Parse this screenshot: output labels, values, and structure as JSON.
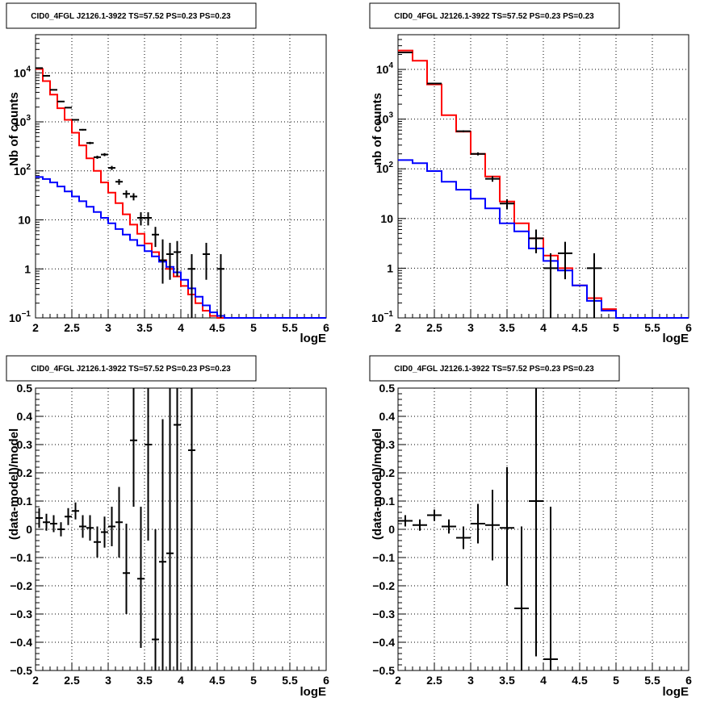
{
  "colors": {
    "data": "#000000",
    "total_model": "#ff0000",
    "background_model": "#0000ff",
    "grid": "#000000",
    "frame": "#000000"
  },
  "chart_data": [
    {
      "type": "step",
      "title": "CID0_4FGL J2126.1-3922 TS=57.52 PS=0.23 PS=0.23",
      "xlabel": "logE",
      "ylabel": "Nb of counts",
      "xlim": [
        2,
        6
      ],
      "ylim": [
        0.1,
        60000
      ],
      "log_y": true,
      "grid": true,
      "x_ticks": [
        "2",
        "2.5",
        "3",
        "3.5",
        "4",
        "4.5",
        "5",
        "5.5",
        "6"
      ],
      "y_ticks": [
        {
          "value": 0.1,
          "label": "10",
          "exp": "−1"
        },
        {
          "value": 1,
          "label": "1"
        },
        {
          "value": 10,
          "label": "10"
        },
        {
          "value": 100,
          "label": "10",
          "exp": "2"
        },
        {
          "value": 1000,
          "label": "10",
          "exp": "3"
        },
        {
          "value": 10000,
          "label": "10",
          "exp": "4"
        }
      ],
      "bin_edges": [
        2.0,
        2.1,
        2.2,
        2.3,
        2.4,
        2.5,
        2.6,
        2.7,
        2.8,
        2.9,
        3.0,
        3.1,
        3.2,
        3.3,
        3.4,
        3.5,
        3.6,
        3.7,
        3.8,
        3.9,
        4.0,
        4.1,
        4.2,
        4.3,
        4.4,
        4.5,
        4.6,
        4.7,
        4.8,
        4.9,
        5.0,
        5.1,
        5.2,
        5.3,
        5.4,
        5.5,
        5.6,
        5.7,
        5.8,
        5.9,
        6.0
      ],
      "series": [
        {
          "name": "total_model",
          "color": "#ff0000",
          "values": [
            12000,
            6800,
            3600,
            1900,
            1100,
            600,
            330,
            180,
            100,
            58,
            36,
            22,
            13,
            8,
            5.2,
            3.3,
            2.2,
            1.5,
            1.0,
            0.7,
            0.45,
            0.3,
            0.2,
            0.14,
            0.11,
            0.1,
            0.1,
            0.1,
            0.1,
            0.1,
            0.1,
            0.1,
            0.1,
            0.1,
            0.1,
            0.1,
            0.1,
            0.1,
            0.1,
            0.1
          ]
        },
        {
          "name": "background_model",
          "color": "#0000ff",
          "values": [
            75,
            68,
            58,
            48,
            38,
            30,
            24,
            18.5,
            14.5,
            11,
            8.5,
            6.5,
            5,
            3.9,
            3.0,
            2.3,
            1.8,
            1.4,
            1.1,
            0.85,
            0.6,
            0.4,
            0.27,
            0.18,
            0.13,
            0.11,
            0.1,
            0.1,
            0.1,
            0.1,
            0.1,
            0.1,
            0.1,
            0.1,
            0.1,
            0.1,
            0.1,
            0.1,
            0.1,
            0.1
          ]
        }
      ],
      "data_points": [
        {
          "x": 2.05,
          "y": 12500,
          "ylo": 12390,
          "yhi": 12610
        },
        {
          "x": 2.15,
          "y": 8700,
          "ylo": 8610,
          "yhi": 8790
        },
        {
          "x": 2.25,
          "y": 4500,
          "ylo": 4430,
          "yhi": 4570
        },
        {
          "x": 2.35,
          "y": 2600,
          "ylo": 2550,
          "yhi": 2650
        },
        {
          "x": 2.45,
          "y": 1950,
          "ylo": 1900,
          "yhi": 2000
        },
        {
          "x": 2.55,
          "y": 1100,
          "ylo": 1070,
          "yhi": 1130
        },
        {
          "x": 2.65,
          "y": 690,
          "ylo": 665,
          "yhi": 715
        },
        {
          "x": 2.75,
          "y": 370,
          "ylo": 350,
          "yhi": 390
        },
        {
          "x": 2.85,
          "y": 190,
          "ylo": 176,
          "yhi": 204
        },
        {
          "x": 2.95,
          "y": 215,
          "ylo": 200,
          "yhi": 230
        },
        {
          "x": 3.05,
          "y": 115,
          "ylo": 104,
          "yhi": 126
        },
        {
          "x": 3.15,
          "y": 60,
          "ylo": 52,
          "yhi": 68
        },
        {
          "x": 3.25,
          "y": 34,
          "ylo": 28,
          "yhi": 40
        },
        {
          "x": 3.35,
          "y": 30,
          "ylo": 25,
          "yhi": 35
        },
        {
          "x": 3.45,
          "y": 11,
          "ylo": 7.7,
          "yhi": 14.3
        },
        {
          "x": 3.55,
          "y": 11,
          "ylo": 7.7,
          "yhi": 14.3
        },
        {
          "x": 3.65,
          "y": 5,
          "ylo": 2.8,
          "yhi": 7.2
        },
        {
          "x": 3.75,
          "y": 1.5,
          "ylo": 0.5,
          "yhi": 4
        },
        {
          "x": 3.85,
          "y": 2,
          "ylo": 0.6,
          "yhi": 3.4
        },
        {
          "x": 3.95,
          "y": 2.2,
          "ylo": 0.7,
          "yhi": 3.7
        },
        {
          "x": 4.15,
          "y": 1,
          "ylo": 0.1,
          "yhi": 2
        },
        {
          "x": 4.35,
          "y": 2,
          "ylo": 0.6,
          "yhi": 3.4
        },
        {
          "x": 4.55,
          "y": 1,
          "ylo": 0.1,
          "yhi": 2
        }
      ]
    },
    {
      "type": "step",
      "title": "CID0_4FGL J2126.1-3922 TS=57.52 PS=0.23 PS=0.23",
      "xlabel": "logE",
      "ylabel": "nb of counts",
      "xlim": [
        2,
        6
      ],
      "ylim": [
        0.1,
        50000
      ],
      "log_y": true,
      "grid": true,
      "x_ticks": [
        "2",
        "2.5",
        "3",
        "3.5",
        "4",
        "4.5",
        "5",
        "5.5",
        "6"
      ],
      "y_ticks": [
        {
          "value": 0.1,
          "label": "10",
          "exp": "−1"
        },
        {
          "value": 1,
          "label": "1"
        },
        {
          "value": 10,
          "label": "10"
        },
        {
          "value": 100,
          "label": "10",
          "exp": "2"
        },
        {
          "value": 1000,
          "label": "10",
          "exp": "3"
        },
        {
          "value": 10000,
          "label": "10",
          "exp": "4"
        }
      ],
      "bin_edges": [
        2.0,
        2.2,
        2.4,
        2.6,
        2.8,
        3.0,
        3.2,
        3.4,
        3.6,
        3.8,
        4.0,
        4.2,
        4.4,
        4.6,
        4.8,
        5.0,
        5.2,
        5.4,
        5.6,
        5.8,
        6.0
      ],
      "series": [
        {
          "name": "total_model",
          "color": "#ff0000",
          "values": [
            24000,
            15000,
            5000,
            1200,
            560,
            200,
            70,
            22,
            8,
            4,
            1.8,
            1.0,
            0.45,
            0.25,
            0.15,
            0.1,
            0.1,
            0.1,
            0.1,
            0.1
          ]
        },
        {
          "name": "background_model",
          "color": "#0000ff",
          "values": [
            150,
            130,
            90,
            55,
            38,
            25,
            16,
            8,
            5.5,
            2.5,
            1.4,
            0.9,
            0.45,
            0.22,
            0.14,
            0.1,
            0.1,
            0.1,
            0.1,
            0.1
          ]
        }
      ],
      "data_points": [
        {
          "x": 2.1,
          "y": 22000,
          "ylo": 21850,
          "yhi": 22150
        },
        {
          "x": 2.5,
          "y": 5200,
          "ylo": 5130,
          "yhi": 5270
        },
        {
          "x": 2.9,
          "y": 570,
          "ylo": 546,
          "yhi": 594
        },
        {
          "x": 3.1,
          "y": 200,
          "ylo": 186,
          "yhi": 214
        },
        {
          "x": 3.3,
          "y": 63,
          "ylo": 55,
          "yhi": 71
        },
        {
          "x": 3.5,
          "y": 20,
          "ylo": 15.5,
          "yhi": 24.5
        },
        {
          "x": 3.9,
          "y": 4,
          "ylo": 2.0,
          "yhi": 6.0
        },
        {
          "x": 4.1,
          "y": 1,
          "ylo": 0.1,
          "yhi": 2
        },
        {
          "x": 4.3,
          "y": 2,
          "ylo": 0.6,
          "yhi": 3.4
        },
        {
          "x": 4.7,
          "y": 1,
          "ylo": 0.1,
          "yhi": 2
        }
      ]
    },
    {
      "type": "scatter",
      "title": "CID0_4FGL J2126.1-3922 TS=57.52 PS=0.23 PS=0.23",
      "xlabel": "logE",
      "ylabel": "(data-model)/model",
      "xlim": [
        2,
        6
      ],
      "ylim": [
        -0.5,
        0.5
      ],
      "log_y": false,
      "grid": true,
      "x_ticks": [
        "2",
        "2.5",
        "3",
        "3.5",
        "4",
        "4.5",
        "5",
        "5.5",
        "6"
      ],
      "y_ticks": [
        "−0.5",
        "−0.4",
        "−0.3",
        "−0.2",
        "−0.1",
        "0",
        "0.1",
        "0.2",
        "0.3",
        "0.4",
        "0.5"
      ],
      "bin_half_width": 0.05,
      "data_points": [
        {
          "x": 2.05,
          "y": 0.04,
          "ylo": 0.005,
          "yhi": 0.075
        },
        {
          "x": 2.15,
          "y": 0.025,
          "ylo": -0.005,
          "yhi": 0.055
        },
        {
          "x": 2.25,
          "y": 0.02,
          "ylo": -0.01,
          "yhi": 0.05
        },
        {
          "x": 2.35,
          "y": 0.0,
          "ylo": -0.025,
          "yhi": 0.025
        },
        {
          "x": 2.45,
          "y": 0.045,
          "ylo": 0.015,
          "yhi": 0.075
        },
        {
          "x": 2.55,
          "y": 0.065,
          "ylo": 0.035,
          "yhi": 0.095
        },
        {
          "x": 2.65,
          "y": 0.01,
          "ylo": -0.03,
          "yhi": 0.05
        },
        {
          "x": 2.75,
          "y": 0.005,
          "ylo": -0.04,
          "yhi": 0.05
        },
        {
          "x": 2.85,
          "y": -0.045,
          "ylo": -0.1,
          "yhi": 0.01
        },
        {
          "x": 2.95,
          "y": -0.01,
          "ylo": -0.065,
          "yhi": 0.045
        },
        {
          "x": 3.05,
          "y": 0.01,
          "ylo": -0.06,
          "yhi": 0.08
        },
        {
          "x": 3.15,
          "y": 0.025,
          "ylo": -0.1,
          "yhi": 0.15
        },
        {
          "x": 3.25,
          "y": -0.155,
          "ylo": -0.3,
          "yhi": 0.02
        },
        {
          "x": 3.35,
          "y": 0.315,
          "ylo": 0.08,
          "yhi": 0.5
        },
        {
          "x": 3.45,
          "y": -0.175,
          "ylo": -0.42,
          "yhi": 0.08
        },
        {
          "x": 3.55,
          "y": 0.3,
          "ylo": -0.04,
          "yhi": 0.5
        },
        {
          "x": 3.65,
          "y": -0.39,
          "ylo": -0.5,
          "yhi": 0.0
        },
        {
          "x": 3.75,
          "y": -0.115,
          "ylo": -0.5,
          "yhi": 0.39
        },
        {
          "x": 3.85,
          "y": -0.085,
          "ylo": -0.5,
          "yhi": 0.5
        },
        {
          "x": 3.95,
          "y": 0.37,
          "ylo": -0.5,
          "yhi": 0.5
        },
        {
          "x": 4.15,
          "y": 0.28,
          "ylo": -0.5,
          "yhi": 0.5
        }
      ]
    },
    {
      "type": "scatter",
      "title": "CID0_4FGL J2126.1-3922 TS=57.52 PS=0.23 PS=0.23",
      "xlabel": "logE",
      "ylabel": "(data-model)/model",
      "xlim": [
        2,
        6
      ],
      "ylim": [
        -0.5,
        0.5
      ],
      "log_y": false,
      "grid": true,
      "x_ticks": [
        "2",
        "2.5",
        "3",
        "3.5",
        "4",
        "4.5",
        "5",
        "5.5",
        "6"
      ],
      "y_ticks": [
        "−0.5",
        "−0.4",
        "−0.3",
        "−0.2",
        "−0.1",
        "0",
        "0.1",
        "0.2",
        "0.3",
        "0.4",
        "0.5"
      ],
      "bin_half_width": 0.1,
      "data_points": [
        {
          "x": 2.1,
          "y": 0.03,
          "ylo": 0.01,
          "yhi": 0.05
        },
        {
          "x": 2.3,
          "y": 0.015,
          "ylo": -0.005,
          "yhi": 0.035
        },
        {
          "x": 2.5,
          "y": 0.05,
          "ylo": 0.03,
          "yhi": 0.07
        },
        {
          "x": 2.7,
          "y": 0.01,
          "ylo": -0.015,
          "yhi": 0.035
        },
        {
          "x": 2.9,
          "y": -0.03,
          "ylo": -0.07,
          "yhi": 0.01
        },
        {
          "x": 3.1,
          "y": 0.02,
          "ylo": -0.05,
          "yhi": 0.09
        },
        {
          "x": 3.3,
          "y": 0.015,
          "ylo": -0.11,
          "yhi": 0.14
        },
        {
          "x": 3.5,
          "y": 0.005,
          "ylo": -0.2,
          "yhi": 0.22
        },
        {
          "x": 3.7,
          "y": -0.28,
          "ylo": -0.5,
          "yhi": 0.01
        },
        {
          "x": 3.9,
          "y": 0.1,
          "ylo": -0.45,
          "yhi": 0.5
        },
        {
          "x": 4.1,
          "y": -0.46,
          "ylo": -0.5,
          "yhi": 0.08
        }
      ]
    }
  ]
}
